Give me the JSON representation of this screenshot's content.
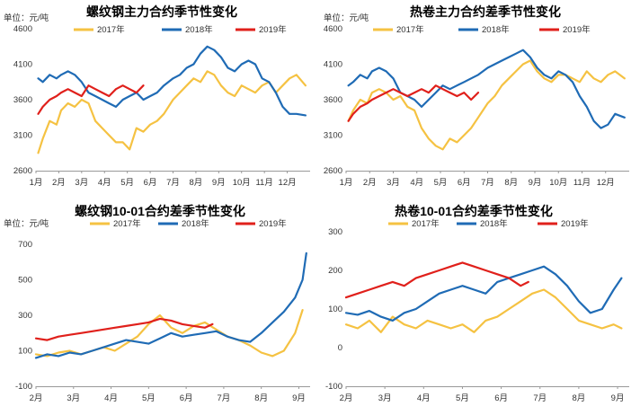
{
  "colors": {
    "2017": "#F5C242",
    "2018": "#1F6BB5",
    "2019": "#E0201B",
    "axis": "#999999"
  },
  "chart_data": [
    {
      "type": "line",
      "title": "螺纹钢主力合约季节性变化",
      "unit": "单位：元/吨",
      "legend": [
        "2017年",
        "2018年",
        "2019年"
      ],
      "ylim": [
        2600,
        4600
      ],
      "yticks": [
        "2600",
        "3100",
        "3600",
        "4100",
        "4600"
      ],
      "xticks": [
        "1月",
        "2月",
        "3月",
        "4月",
        "5月",
        "6月",
        "7月",
        "8月",
        "9月",
        "10月",
        "11月",
        "12月"
      ],
      "xlim": [
        1,
        13
      ],
      "series": [
        {
          "name": "2017年",
          "x": [
            1.1,
            1.3,
            1.6,
            1.9,
            2.1,
            2.4,
            2.7,
            3.0,
            3.3,
            3.6,
            3.9,
            4.2,
            4.5,
            4.8,
            5.1,
            5.4,
            5.7,
            6.0,
            6.3,
            6.6,
            7.0,
            7.3,
            7.6,
            7.9,
            8.2,
            8.5,
            8.8,
            9.1,
            9.4,
            9.7,
            10.0,
            10.3,
            10.6,
            10.9,
            11.2,
            11.5,
            11.8,
            12.1,
            12.4,
            12.8
          ],
          "y": [
            2850,
            3050,
            3300,
            3250,
            3450,
            3550,
            3500,
            3600,
            3550,
            3300,
            3200,
            3100,
            3000,
            3000,
            2900,
            3200,
            3150,
            3250,
            3300,
            3400,
            3600,
            3700,
            3800,
            3900,
            3850,
            4000,
            3950,
            3800,
            3700,
            3650,
            3800,
            3750,
            3700,
            3800,
            3850,
            3700,
            3800,
            3900,
            3950,
            3800
          ]
        },
        {
          "name": "2018年",
          "x": [
            1.1,
            1.3,
            1.6,
            1.9,
            2.1,
            2.4,
            2.7,
            3.0,
            3.3,
            3.6,
            3.9,
            4.2,
            4.5,
            4.8,
            5.1,
            5.4,
            5.7,
            6.0,
            6.3,
            6.6,
            7.0,
            7.3,
            7.6,
            7.9,
            8.2,
            8.5,
            8.8,
            9.1,
            9.4,
            9.7,
            10.0,
            10.3,
            10.6,
            10.9,
            11.2,
            11.5,
            11.8,
            12.1,
            12.4,
            12.8
          ],
          "y": [
            3900,
            3850,
            3950,
            3900,
            3950,
            4000,
            3950,
            3850,
            3700,
            3650,
            3600,
            3550,
            3500,
            3600,
            3650,
            3700,
            3600,
            3650,
            3700,
            3800,
            3900,
            3950,
            4050,
            4100,
            4250,
            4350,
            4300,
            4200,
            4050,
            4000,
            4100,
            4150,
            4100,
            3900,
            3850,
            3700,
            3500,
            3400,
            3400,
            3380
          ]
        },
        {
          "name": "2019年",
          "x": [
            1.1,
            1.3,
            1.6,
            1.9,
            2.1,
            2.4,
            2.7,
            3.0,
            3.3,
            3.6,
            3.9,
            4.2,
            4.5,
            4.8,
            5.1,
            5.4,
            5.7
          ],
          "y": [
            3400,
            3500,
            3600,
            3650,
            3700,
            3750,
            3700,
            3650,
            3800,
            3750,
            3700,
            3650,
            3750,
            3800,
            3750,
            3700,
            3800
          ]
        }
      ]
    },
    {
      "type": "line",
      "title": "热卷主力合约差季节性变化",
      "unit": "单位：元/吨",
      "legend": [
        "2017年",
        "2018年",
        "2019年"
      ],
      "ylim": [
        2600,
        4600
      ],
      "yticks": [
        "2600",
        "3100",
        "3600",
        "4100",
        "4600"
      ],
      "xticks": [
        "1月",
        "2月",
        "3月",
        "4月",
        "5月",
        "6月",
        "7月",
        "8月",
        "9月",
        "10月",
        "11月",
        "12月"
      ],
      "xlim": [
        1,
        13
      ],
      "series": [
        {
          "name": "2017年",
          "x": [
            1.1,
            1.3,
            1.6,
            1.9,
            2.1,
            2.4,
            2.7,
            3.0,
            3.3,
            3.6,
            3.9,
            4.2,
            4.5,
            4.8,
            5.1,
            5.4,
            5.7,
            6.0,
            6.3,
            6.6,
            7.0,
            7.3,
            7.6,
            7.9,
            8.2,
            8.5,
            8.8,
            9.1,
            9.4,
            9.7,
            10.0,
            10.3,
            10.6,
            10.9,
            11.2,
            11.5,
            11.8,
            12.1,
            12.4,
            12.8
          ],
          "y": [
            3300,
            3450,
            3600,
            3550,
            3700,
            3750,
            3700,
            3600,
            3650,
            3500,
            3450,
            3200,
            3050,
            2950,
            2900,
            3050,
            3000,
            3100,
            3200,
            3350,
            3550,
            3650,
            3800,
            3900,
            4000,
            4100,
            4150,
            4000,
            3900,
            3850,
            3950,
            3950,
            3900,
            3850,
            4000,
            3900,
            3850,
            3950,
            4000,
            3900
          ]
        },
        {
          "name": "2018年",
          "x": [
            1.1,
            1.3,
            1.6,
            1.9,
            2.1,
            2.4,
            2.7,
            3.0,
            3.3,
            3.6,
            3.9,
            4.2,
            4.5,
            4.8,
            5.1,
            5.4,
            5.7,
            6.0,
            6.3,
            6.6,
            7.0,
            7.3,
            7.6,
            7.9,
            8.2,
            8.5,
            8.8,
            9.1,
            9.4,
            9.7,
            10.0,
            10.3,
            10.6,
            10.9,
            11.2,
            11.5,
            11.8,
            12.1,
            12.4,
            12.8
          ],
          "y": [
            3800,
            3850,
            3950,
            3900,
            4000,
            4050,
            4000,
            3900,
            3700,
            3650,
            3600,
            3500,
            3600,
            3700,
            3800,
            3750,
            3800,
            3850,
            3900,
            3950,
            4050,
            4100,
            4150,
            4200,
            4250,
            4300,
            4200,
            4050,
            3950,
            3900,
            4000,
            3950,
            3850,
            3650,
            3500,
            3300,
            3200,
            3250,
            3400,
            3350
          ]
        },
        {
          "name": "2019年",
          "x": [
            1.1,
            1.3,
            1.6,
            1.9,
            2.1,
            2.4,
            2.7,
            3.0,
            3.3,
            3.6,
            3.9,
            4.2,
            4.5,
            4.8,
            5.1,
            5.4,
            5.7,
            6.0,
            6.3,
            6.6
          ],
          "y": [
            3300,
            3400,
            3500,
            3550,
            3600,
            3650,
            3700,
            3750,
            3700,
            3650,
            3700,
            3750,
            3700,
            3800,
            3750,
            3700,
            3650,
            3700,
            3600,
            3700
          ]
        }
      ]
    },
    {
      "type": "line",
      "title": "螺纹钢10-01合约差季节性变化",
      "unit": "单位：元/吨",
      "legend": [
        "2017年",
        "2018年",
        "2019年"
      ],
      "ylim": [
        -100,
        700
      ],
      "yticks": [
        "-100",
        "100",
        "300",
        "500",
        "700"
      ],
      "xticks": [
        "2月",
        "3月",
        "4月",
        "5月",
        "6月",
        "7月",
        "8月",
        "9月"
      ],
      "xlim": [
        2,
        9.3
      ],
      "series": [
        {
          "name": "2017年",
          "x": [
            2.0,
            2.3,
            2.6,
            2.9,
            3.2,
            3.5,
            3.8,
            4.1,
            4.4,
            4.7,
            5.0,
            5.3,
            5.6,
            5.9,
            6.2,
            6.5,
            6.8,
            7.1,
            7.4,
            7.7,
            8.0,
            8.3,
            8.6,
            8.9,
            9.1
          ],
          "y": [
            80,
            70,
            90,
            100,
            80,
            100,
            120,
            100,
            140,
            180,
            250,
            300,
            230,
            200,
            240,
            260,
            220,
            180,
            160,
            130,
            90,
            70,
            100,
            200,
            330
          ]
        },
        {
          "name": "2018年",
          "x": [
            2.0,
            2.3,
            2.6,
            2.9,
            3.2,
            3.5,
            3.8,
            4.1,
            4.4,
            4.7,
            5.0,
            5.3,
            5.6,
            5.9,
            6.2,
            6.5,
            6.8,
            7.1,
            7.4,
            7.7,
            8.0,
            8.3,
            8.6,
            8.9,
            9.1,
            9.2
          ],
          "y": [
            60,
            80,
            70,
            90,
            80,
            100,
            120,
            140,
            160,
            150,
            140,
            170,
            200,
            180,
            190,
            200,
            210,
            180,
            160,
            150,
            200,
            260,
            320,
            400,
            500,
            650
          ]
        },
        {
          "name": "2019年",
          "x": [
            2.0,
            2.3,
            2.6,
            2.9,
            3.2,
            3.5,
            3.8,
            4.1,
            4.4,
            4.7,
            5.0,
            5.3,
            5.6,
            5.9,
            6.2,
            6.5,
            6.7
          ],
          "y": [
            170,
            160,
            180,
            190,
            200,
            210,
            220,
            230,
            240,
            250,
            260,
            280,
            270,
            250,
            240,
            230,
            250
          ]
        }
      ]
    },
    {
      "type": "line",
      "title": "热卷10-01合约差季节性变化",
      "unit": "",
      "legend": [
        "2017年",
        "2018年",
        "2019年"
      ],
      "ylim": [
        -100,
        300
      ],
      "yticks": [
        "-100",
        "0",
        "100",
        "200",
        "300"
      ],
      "xticks": [
        "2月",
        "3月",
        "4月",
        "5月",
        "6月",
        "7月",
        "8月",
        "9月"
      ],
      "xlim": [
        2,
        9.3
      ],
      "series": [
        {
          "name": "2017年",
          "x": [
            2.0,
            2.3,
            2.6,
            2.9,
            3.2,
            3.5,
            3.8,
            4.1,
            4.4,
            4.7,
            5.0,
            5.3,
            5.6,
            5.9,
            6.2,
            6.5,
            6.8,
            7.1,
            7.4,
            7.7,
            8.0,
            8.3,
            8.6,
            8.9,
            9.1
          ],
          "y": [
            60,
            50,
            70,
            40,
            80,
            60,
            50,
            70,
            60,
            50,
            60,
            40,
            70,
            80,
            100,
            120,
            140,
            150,
            130,
            100,
            70,
            60,
            50,
            60,
            50
          ]
        },
        {
          "name": "2018年",
          "x": [
            2.0,
            2.3,
            2.6,
            2.9,
            3.2,
            3.5,
            3.8,
            4.1,
            4.4,
            4.7,
            5.0,
            5.3,
            5.6,
            5.9,
            6.2,
            6.5,
            6.8,
            7.1,
            7.4,
            7.7,
            8.0,
            8.3,
            8.6,
            8.9,
            9.1
          ],
          "y": [
            90,
            85,
            95,
            80,
            70,
            90,
            100,
            120,
            140,
            150,
            160,
            150,
            140,
            170,
            180,
            190,
            200,
            210,
            190,
            160,
            120,
            90,
            100,
            150,
            180
          ]
        },
        {
          "name": "2019年",
          "x": [
            2.0,
            2.3,
            2.6,
            2.9,
            3.2,
            3.5,
            3.8,
            4.1,
            4.4,
            4.7,
            5.0,
            5.3,
            5.6,
            5.9,
            6.2,
            6.5,
            6.7
          ],
          "y": [
            130,
            140,
            150,
            160,
            170,
            160,
            180,
            190,
            200,
            210,
            220,
            210,
            200,
            190,
            180,
            160,
            170
          ]
        }
      ]
    }
  ]
}
